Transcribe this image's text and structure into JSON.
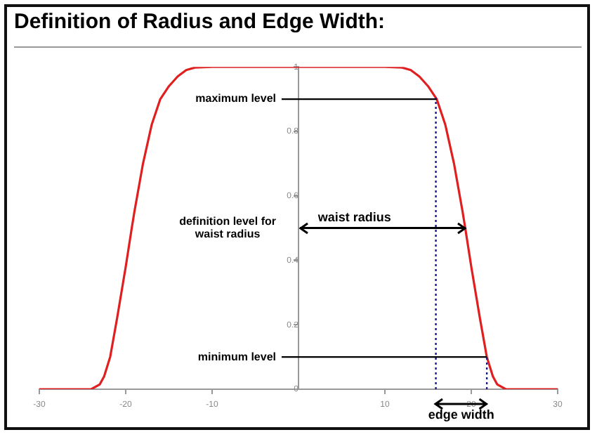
{
  "chart_data": {
    "type": "line",
    "title": "Definition of Radius and Edge Width:",
    "x": [
      -30,
      -24,
      -23,
      -22.5,
      -21.8,
      -21,
      -20,
      -19.3,
      -19,
      -18,
      -17,
      -16,
      -15,
      -14,
      -13,
      -12,
      -10,
      0,
      10,
      12,
      13,
      14,
      15,
      16,
      17,
      18,
      19,
      19.3,
      20,
      21,
      21.8,
      22.5,
      23,
      24,
      30
    ],
    "series": [
      {
        "color": "#e02020",
        "values": [
          0,
          0,
          0.015,
          0.04,
          0.1,
          0.22,
          0.38,
          0.5,
          0.55,
          0.7,
          0.82,
          0.9,
          0.94,
          0.97,
          0.99,
          0.998,
          1,
          1,
          1,
          0.998,
          0.99,
          0.97,
          0.94,
          0.9,
          0.82,
          0.7,
          0.55,
          0.5,
          0.38,
          0.22,
          0.1,
          0.04,
          0.015,
          0,
          0
        ]
      }
    ],
    "xlim": [
      -30,
      30
    ],
    "xticks": [
      -30,
      -20,
      -10,
      10,
      20,
      30
    ],
    "ylim": [
      0,
      1
    ],
    "yticks": [
      0,
      0.2,
      0.4,
      0.6,
      0.8,
      1
    ],
    "grid": false,
    "legend": false,
    "marker": "none",
    "line_style": "solid",
    "ref_lines": [
      {
        "axis": "y",
        "value": 0.9,
        "label": "maximum level",
        "color": "#000000",
        "line_style": "solid"
      },
      {
        "axis": "y",
        "value": 0.1,
        "label": "minimum level",
        "color": "#000000",
        "line_style": "solid"
      },
      {
        "axis": "y",
        "value": 0.5,
        "label": "definition level for waist radius",
        "color": "#000000",
        "line_style": "solid"
      },
      {
        "axis": "x",
        "value": 15.9,
        "label": null,
        "color": "#1a1a8c",
        "line_style": "dotted"
      },
      {
        "axis": "x",
        "value": 21.8,
        "label": null,
        "color": "#1a1a8c",
        "line_style": "dotted"
      }
    ],
    "annotations": [
      "waist radius",
      "edge width"
    ]
  }
}
